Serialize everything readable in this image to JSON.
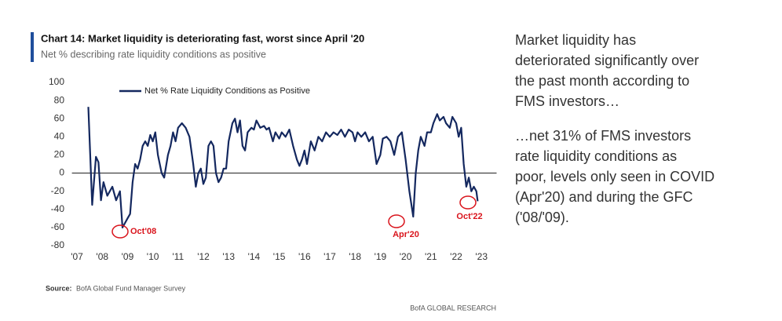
{
  "chart_data": {
    "type": "line",
    "title": "Chart 14: Market liquidity is deteriorating fast, worst since April '20",
    "subtitle": "Net % describing rate liquidity conditions as positive",
    "source_label": "Source:",
    "source": "BofA Global Fund Manager Survey",
    "footer": "BofA GLOBAL RESEARCH",
    "xlim": [
      2006.8,
      2023.6
    ],
    "xticks": [
      {
        "value": 2007,
        "label": "'07"
      },
      {
        "value": 2008,
        "label": "'08"
      },
      {
        "value": 2009,
        "label": "'09"
      },
      {
        "value": 2010,
        "label": "'10"
      },
      {
        "value": 2011,
        "label": "'11"
      },
      {
        "value": 2012,
        "label": "'12"
      },
      {
        "value": 2013,
        "label": "'13"
      },
      {
        "value": 2014,
        "label": "'14"
      },
      {
        "value": 2015,
        "label": "'15"
      },
      {
        "value": 2016,
        "label": "'16"
      },
      {
        "value": 2017,
        "label": "'17"
      },
      {
        "value": 2018,
        "label": "'18"
      },
      {
        "value": 2019,
        "label": "'19"
      },
      {
        "value": 2020,
        "label": "'20"
      },
      {
        "value": 2021,
        "label": "'21"
      },
      {
        "value": 2022,
        "label": "'22"
      },
      {
        "value": 2023,
        "label": "'23"
      }
    ],
    "ylim": [
      -80,
      100
    ],
    "yticks": [
      -80,
      -60,
      -40,
      -20,
      0,
      20,
      40,
      60,
      80,
      100
    ],
    "grid": false,
    "x": [
      2007.45,
      2007.6,
      2007.75,
      2007.85,
      2007.95,
      2008.05,
      2008.2,
      2008.4,
      2008.55,
      2008.7,
      2008.8,
      2008.9,
      2009.0,
      2009.1,
      2009.2,
      2009.3,
      2009.4,
      2009.5,
      2009.6,
      2009.7,
      2009.8,
      2009.9,
      2010.0,
      2010.1,
      2010.2,
      2010.35,
      2010.45,
      2010.6,
      2010.7,
      2010.8,
      2010.9,
      2011.0,
      2011.15,
      2011.3,
      2011.45,
      2011.6,
      2011.7,
      2011.8,
      2011.9,
      2012.0,
      2012.1,
      2012.2,
      2012.3,
      2012.4,
      2012.5,
      2012.6,
      2012.7,
      2012.8,
      2012.9,
      2013.0,
      2013.15,
      2013.25,
      2013.35,
      2013.45,
      2013.55,
      2013.65,
      2013.75,
      2013.9,
      2014.0,
      2014.1,
      2014.25,
      2014.4,
      2014.5,
      2014.6,
      2014.75,
      2014.85,
      2015.0,
      2015.1,
      2015.25,
      2015.4,
      2015.55,
      2015.7,
      2015.8,
      2015.9,
      2016.0,
      2016.1,
      2016.25,
      2016.4,
      2016.55,
      2016.7,
      2016.85,
      2017.0,
      2017.15,
      2017.3,
      2017.45,
      2017.6,
      2017.75,
      2017.9,
      2018.0,
      2018.1,
      2018.25,
      2018.4,
      2018.55,
      2018.7,
      2018.85,
      2019.0,
      2019.1,
      2019.25,
      2019.4,
      2019.55,
      2019.7,
      2019.85,
      2020.0,
      2020.15,
      2020.3,
      2020.4,
      2020.5,
      2020.6,
      2020.75,
      2020.85,
      2021.0,
      2021.1,
      2021.25,
      2021.35,
      2021.5,
      2021.6,
      2021.75,
      2021.85,
      2022.0,
      2022.1,
      2022.2,
      2022.3,
      2022.4,
      2022.5,
      2022.6,
      2022.7,
      2022.8,
      2022.85
    ],
    "series": [
      {
        "name": "Net % Rate Liquidity Conditions as Positive",
        "color": "#14285f",
        "values": [
          73,
          -35,
          18,
          12,
          -30,
          -10,
          -25,
          -15,
          -30,
          -20,
          -60,
          -55,
          -50,
          -45,
          -10,
          10,
          5,
          15,
          30,
          35,
          30,
          42,
          35,
          45,
          20,
          0,
          -5,
          20,
          30,
          45,
          35,
          50,
          55,
          50,
          40,
          10,
          -15,
          0,
          5,
          -12,
          -5,
          30,
          35,
          30,
          0,
          -10,
          -5,
          5,
          5,
          35,
          55,
          60,
          45,
          58,
          30,
          25,
          45,
          50,
          48,
          58,
          50,
          52,
          48,
          50,
          35,
          45,
          38,
          45,
          40,
          48,
          30,
          15,
          8,
          15,
          25,
          10,
          35,
          25,
          40,
          35,
          45,
          40,
          45,
          42,
          48,
          40,
          48,
          45,
          35,
          45,
          40,
          45,
          35,
          40,
          10,
          20,
          38,
          40,
          35,
          20,
          40,
          45,
          15,
          -20,
          -48,
          0,
          25,
          40,
          30,
          45,
          45,
          55,
          65,
          58,
          62,
          55,
          50,
          62,
          55,
          40,
          50,
          10,
          -15,
          -5,
          -20,
          -15,
          -20,
          -31
        ]
      }
    ],
    "annotations": [
      "Oct'08",
      "Apr'20",
      "Oct'22"
    ],
    "commentary": [
      [
        "Market liquidity has",
        "deteriorated significantly over",
        "the past month according to",
        "FMS investors…"
      ],
      [
        "…net 31% of FMS investors",
        "rate liquidity conditions as",
        "poor, levels only seen in COVID",
        "(Apr'20) and during the GFC",
        "('08/'09)."
      ]
    ]
  }
}
